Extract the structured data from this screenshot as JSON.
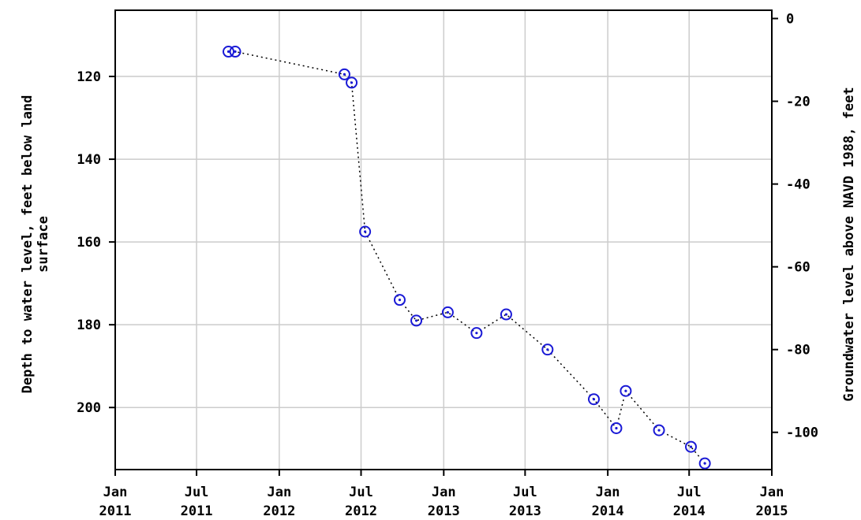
{
  "chart_data": {
    "type": "scatter",
    "left_axis": {
      "label_line1": "Depth to water level, feet below land",
      "label_line2": "surface",
      "ylim": [
        104,
        215
      ],
      "inverted": true,
      "ticks": [
        {
          "value": 120,
          "label": "120"
        },
        {
          "value": 140,
          "label": "140"
        },
        {
          "value": 160,
          "label": "160"
        },
        {
          "value": 180,
          "label": "180"
        },
        {
          "value": 200,
          "label": "200"
        }
      ]
    },
    "right_axis": {
      "label": "Groundwater level above NAVD 1988, feet",
      "ticks": [
        {
          "value": 0,
          "label": "0"
        },
        {
          "value": -20,
          "label": "-20"
        },
        {
          "value": -40,
          "label": "-40"
        },
        {
          "value": -60,
          "label": "-60"
        },
        {
          "value": -80,
          "label": "-80"
        },
        {
          "value": -100,
          "label": "-100"
        }
      ]
    },
    "x_axis": {
      "xlim": [
        "2011-01-01",
        "2015-01-01"
      ],
      "ticks": [
        {
          "date": "2011-01-01",
          "label1": "Jan",
          "label2": "2011"
        },
        {
          "date": "2011-07-01",
          "label1": "Jul",
          "label2": "2011"
        },
        {
          "date": "2012-01-01",
          "label1": "Jan",
          "label2": "2012"
        },
        {
          "date": "2012-07-01",
          "label1": "Jul",
          "label2": "2012"
        },
        {
          "date": "2013-01-01",
          "label1": "Jan",
          "label2": "2013"
        },
        {
          "date": "2013-07-01",
          "label1": "Jul",
          "label2": "2013"
        },
        {
          "date": "2014-01-01",
          "label1": "Jan",
          "label2": "2014"
        },
        {
          "date": "2014-07-01",
          "label1": "Jul",
          "label2": "2014"
        },
        {
          "date": "2015-01-01",
          "label1": "Jan",
          "label2": "2015"
        }
      ]
    },
    "grid": true,
    "line_style": "dotted",
    "marker_color": "#1a1ad6",
    "points": [
      {
        "date": "2011-09-10",
        "depth": 114
      },
      {
        "date": "2011-09-25",
        "depth": 114
      },
      {
        "date": "2012-05-25",
        "depth": 119.5
      },
      {
        "date": "2012-06-10",
        "depth": 121.5
      },
      {
        "date": "2012-07-10",
        "depth": 157.5
      },
      {
        "date": "2012-09-25",
        "depth": 174
      },
      {
        "date": "2012-11-01",
        "depth": 179
      },
      {
        "date": "2013-01-10",
        "depth": 177
      },
      {
        "date": "2013-03-15",
        "depth": 182
      },
      {
        "date": "2013-05-20",
        "depth": 177.5
      },
      {
        "date": "2013-08-20",
        "depth": 186
      },
      {
        "date": "2013-12-01",
        "depth": 198
      },
      {
        "date": "2014-01-20",
        "depth": 205
      },
      {
        "date": "2014-02-10",
        "depth": 196
      },
      {
        "date": "2014-04-25",
        "depth": 205.5
      },
      {
        "date": "2014-07-05",
        "depth": 209.5
      },
      {
        "date": "2014-08-05",
        "depth": 213.5
      }
    ]
  }
}
